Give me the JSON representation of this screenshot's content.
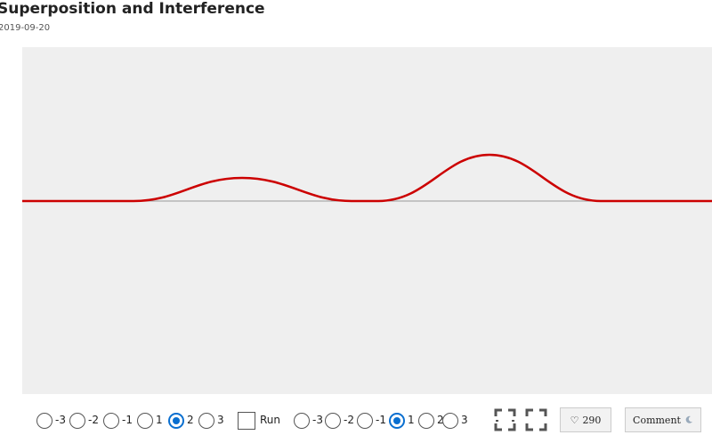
{
  "header": {
    "title": "Superposition and Interference",
    "date": "2019-09-20"
  },
  "controls": {
    "groups": [
      {
        "options": [
          "-3",
          "-2",
          "-1",
          "1",
          "2",
          "3"
        ],
        "checked": 4
      },
      {
        "options": [
          "-3",
          "-2",
          "-1",
          "1",
          "2",
          "3"
        ],
        "checked": 3
      }
    ],
    "run": {
      "label": "Run",
      "checked": false
    },
    "like": {
      "count": "290"
    },
    "comment": {
      "label": "Comment"
    }
  }
}
